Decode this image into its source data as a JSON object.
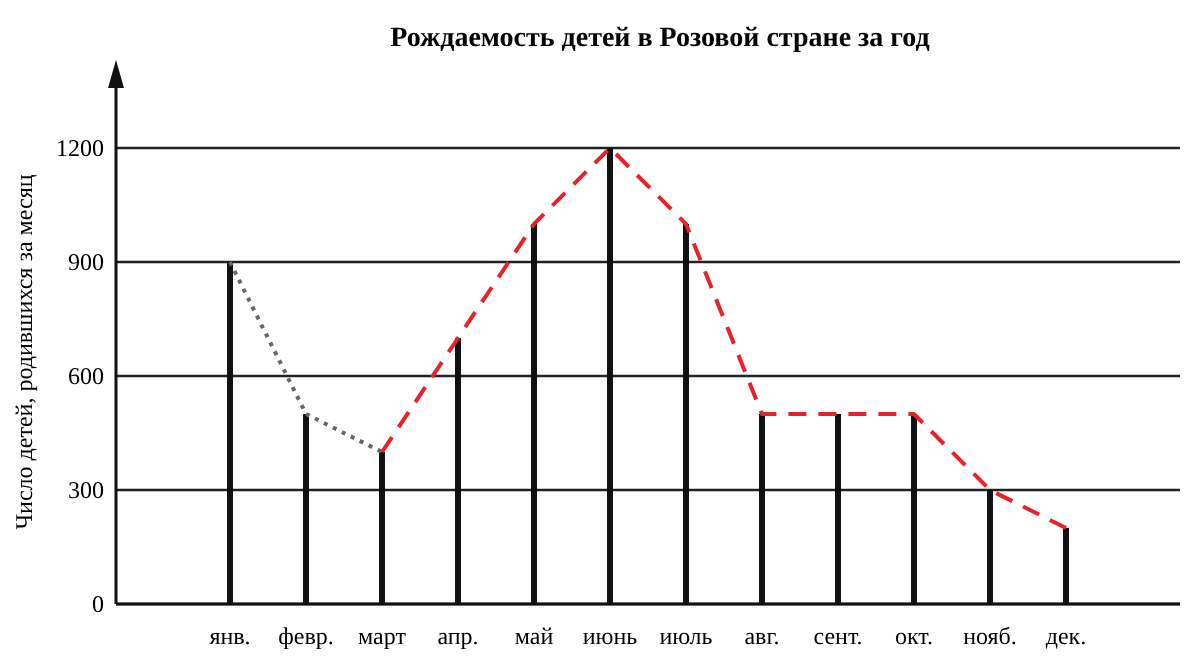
{
  "chart_data": {
    "type": "bar",
    "title": "Рождаемость детей в Розовой стране за год",
    "ylabel": "Число детей, родившихся за месяц",
    "categories": [
      "янв.",
      "февр.",
      "март",
      "апр.",
      "май",
      "июнь",
      "июль",
      "авг.",
      "сент.",
      "окт.",
      "нояб.",
      "дек."
    ],
    "series": [
      {
        "color": "#111111",
        "values": [
          900,
          500,
          400,
          700,
          1000,
          1200,
          1000,
          500,
          500,
          500,
          300,
          200
        ]
      },
      {
        "type": "line",
        "color": "#666666",
        "line_style": "dotted",
        "values": [
          900,
          500,
          400,
          null,
          null,
          null,
          null,
          null,
          null,
          null,
          null,
          null
        ]
      },
      {
        "type": "line",
        "color": "#e8222a",
        "line_style": "dashed",
        "values": [
          null,
          null,
          400,
          700,
          1000,
          1200,
          1000,
          500,
          500,
          500,
          300,
          200
        ]
      }
    ],
    "ylim": [
      0,
      1200
    ],
    "yticks": [
      0,
      300,
      600,
      900,
      1200
    ],
    "grid": "y"
  }
}
